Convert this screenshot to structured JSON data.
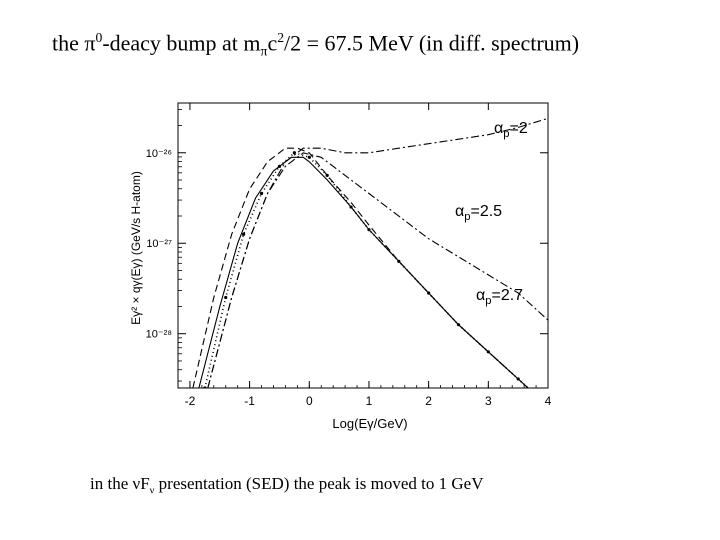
{
  "title": {
    "prefix": "the ",
    "pi": "π",
    "zero": "0",
    "mid": "-deacy bump at m",
    "pi_sub": "π",
    "c": "c",
    "two": "2",
    "suffix": "/2 = 67.5 MeV (in diff. spectrum)"
  },
  "caption": {
    "prefix": "in the ",
    "nu": "ν",
    "F": "F",
    "nu_sub": "ν",
    "suffix": "  presentation (SED) the peak is moved to 1 GeV"
  },
  "annotations": [
    {
      "alpha": "α",
      "sub": "p",
      "value": "=2"
    },
    {
      "alpha": "α",
      "sub": "p",
      "value": "=2.5"
    },
    {
      "alpha": "α",
      "sub": "p",
      "value": "=2.7"
    }
  ],
  "chart_data": {
    "type": "line",
    "xlabel": "Log(Eγ/GeV)",
    "ylabel": "Eγ² × qγ(Eγ)  (GeV/s H-atom)",
    "xlim": [
      -2.2,
      4.0
    ],
    "ylim_log10": [
      -28.6,
      -25.45
    ],
    "y_scale": "log",
    "x_ticks": [
      "-2",
      "-1",
      "0",
      "1",
      "2",
      "3",
      "4"
    ],
    "x_tick_values": [
      -2,
      -1,
      0,
      1,
      2,
      3,
      4
    ],
    "y_ticks": [
      "10⁻²⁶",
      "10⁻²⁷",
      "10⁻²⁸"
    ],
    "y_tick_values": [
      -26,
      -27,
      -28
    ],
    "series": [
      {
        "style": "solid",
        "x": [
          -1.85,
          -1.5,
          -1.2,
          -0.9,
          -0.6,
          -0.3,
          -0.1,
          0.0,
          0.3,
          0.7,
          1.0,
          1.5,
          2.0,
          2.5,
          3.0,
          3.5,
          4.0
        ],
        "y": [
          -28.6,
          -27.7,
          -27.0,
          -26.5,
          -26.2,
          -26.05,
          -26.05,
          -26.1,
          -26.3,
          -26.6,
          -26.85,
          -27.2,
          -27.55,
          -27.9,
          -28.2,
          -28.5,
          -28.8
        ]
      },
      {
        "style": "dashed",
        "x": [
          -1.95,
          -1.6,
          -1.3,
          -1.0,
          -0.7,
          -0.4,
          -0.2,
          0.0,
          0.3,
          0.7,
          1.0,
          1.5,
          2.0,
          2.5,
          3.0,
          3.5,
          4.0
        ],
        "y": [
          -28.6,
          -27.6,
          -26.9,
          -26.4,
          -26.1,
          -25.95,
          -25.95,
          -26.0,
          -26.25,
          -26.55,
          -26.8,
          -27.2,
          -27.55,
          -27.9,
          -28.2,
          -28.5,
          -28.8
        ]
      },
      {
        "style": "dashdot",
        "name": "αp=2",
        "x": [
          -1.7,
          -1.3,
          -1.0,
          -0.7,
          -0.4,
          -0.1,
          0.2,
          0.6,
          1.0,
          1.5,
          2.0,
          2.5,
          3.0,
          3.5,
          4.0
        ],
        "y": [
          -28.6,
          -27.6,
          -26.95,
          -26.45,
          -26.1,
          -25.95,
          -25.95,
          -26.0,
          -26.0,
          -25.95,
          -25.9,
          -25.85,
          -25.8,
          -25.72,
          -25.62
        ]
      },
      {
        "style": "dashdot",
        "name": "αp=2.5",
        "x": [
          -1.7,
          -1.3,
          -1.0,
          -0.7,
          -0.4,
          -0.1,
          0.2,
          0.6,
          1.0,
          1.5,
          2.0,
          2.5,
          3.0,
          3.5,
          4.0
        ],
        "y": [
          -28.6,
          -27.6,
          -26.95,
          -26.45,
          -26.15,
          -26.0,
          -26.05,
          -26.25,
          -26.45,
          -26.7,
          -26.95,
          -27.15,
          -27.35,
          -27.55,
          -27.85
        ]
      },
      {
        "style": "dotted",
        "name": "αp=2.7",
        "x": [
          -1.75,
          -1.4,
          -1.1,
          -0.8,
          -0.5,
          -0.25,
          0.0,
          0.3,
          0.7,
          1.0,
          1.5,
          2.0,
          2.5,
          3.0,
          3.5,
          4.0
        ],
        "y": [
          -28.6,
          -27.6,
          -26.9,
          -26.45,
          -26.15,
          -26.0,
          -26.05,
          -26.25,
          -26.6,
          -26.85,
          -27.2,
          -27.55,
          -27.9,
          -28.2,
          -28.5,
          -28.8
        ]
      }
    ]
  }
}
